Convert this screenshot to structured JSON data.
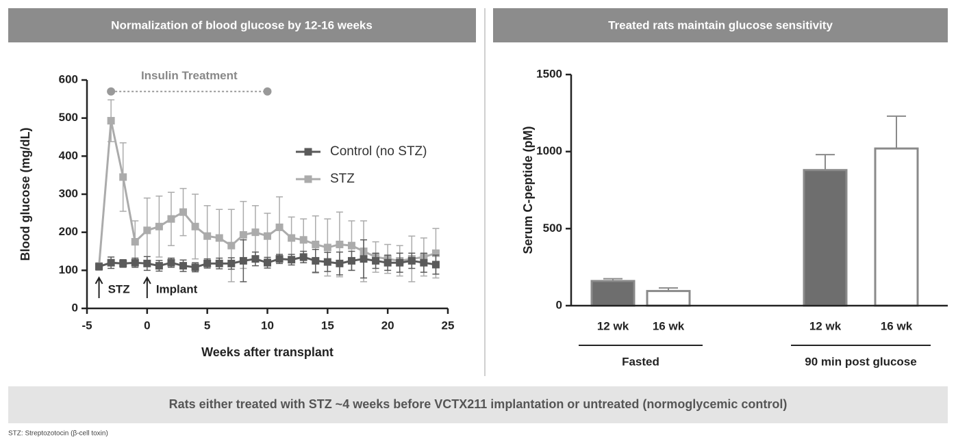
{
  "chart_data": [
    {
      "type": "line",
      "title": "Normalization of blood glucose by 12-16 weeks",
      "x_label": "Weeks after transplant",
      "y_label": "Blood glucose (mg/dL)",
      "x": [
        -4,
        -3,
        -2,
        -1,
        0,
        1,
        2,
        3,
        4,
        5,
        6,
        7,
        8,
        9,
        10,
        11,
        12,
        13,
        14,
        15,
        16,
        17,
        18,
        19,
        20,
        21,
        22,
        23,
        24
      ],
      "series": [
        {
          "name": "Control (no STZ)",
          "color": "#5a5a5a",
          "values": [
            110,
            120,
            118,
            120,
            118,
            112,
            120,
            112,
            108,
            118,
            118,
            118,
            125,
            130,
            120,
            130,
            128,
            135,
            125,
            122,
            118,
            125,
            130,
            125,
            120,
            120,
            125,
            120,
            115
          ],
          "errors": [
            8,
            15,
            10,
            12,
            18,
            14,
            12,
            15,
            12,
            12,
            14,
            15,
            55,
            18,
            14,
            12,
            14,
            15,
            30,
            25,
            30,
            25,
            50,
            20,
            20,
            25,
            20,
            25,
            25
          ]
        },
        {
          "name": "STZ",
          "color": "#ababab",
          "values": [
            110,
            493,
            345,
            175,
            205,
            215,
            235,
            253,
            215,
            190,
            185,
            165,
            193,
            200,
            190,
            213,
            185,
            180,
            168,
            160,
            168,
            165,
            150,
            135,
            130,
            125,
            130,
            135,
            145
          ],
          "errors": [
            10,
            55,
            90,
            55,
            85,
            80,
            70,
            62,
            85,
            80,
            75,
            95,
            88,
            70,
            60,
            80,
            55,
            55,
            75,
            75,
            85,
            65,
            80,
            40,
            38,
            40,
            60,
            50,
            65
          ]
        }
      ],
      "xlim": [
        -5,
        25
      ],
      "xticks": [
        -5,
        0,
        5,
        10,
        15,
        20,
        25
      ],
      "ylim": [
        0,
        600
      ],
      "yticks": [
        0,
        100,
        200,
        300,
        400,
        500,
        600
      ],
      "annotations": {
        "insulin_treatment": {
          "label": "Insulin Treatment",
          "x": [
            -3,
            10
          ],
          "y": 570
        },
        "arrows": [
          {
            "label": "STZ",
            "x": -4
          },
          {
            "label": "Implant",
            "x": 0
          }
        ]
      }
    },
    {
      "type": "bar",
      "title": "Treated rats maintain glucose sensitivity",
      "y_label": "Serum C-peptide (pM)",
      "groups": [
        {
          "name": "Fasted",
          "categories": [
            "12 wk",
            "16 wk"
          ],
          "values": [
            160,
            95
          ],
          "errors": [
            15,
            20
          ],
          "colors": [
            "#6e6e6e",
            "#ffffff"
          ]
        },
        {
          "name": "90 min post glucose",
          "categories": [
            "12 wk",
            "16 wk"
          ],
          "values": [
            880,
            1020
          ],
          "errors": [
            100,
            210
          ],
          "colors": [
            "#6e6e6e",
            "#ffffff"
          ]
        }
      ],
      "edge_color": "#8a8a8a",
      "ylim": [
        0,
        1500
      ],
      "yticks": [
        0,
        500,
        1000,
        1500
      ]
    }
  ],
  "caption": "Rats either treated with STZ ~4 weeks before VCTX211 implantation or untreated (normoglycemic control)",
  "footnote": "STZ: Streptozotocin (β-cell toxin)"
}
